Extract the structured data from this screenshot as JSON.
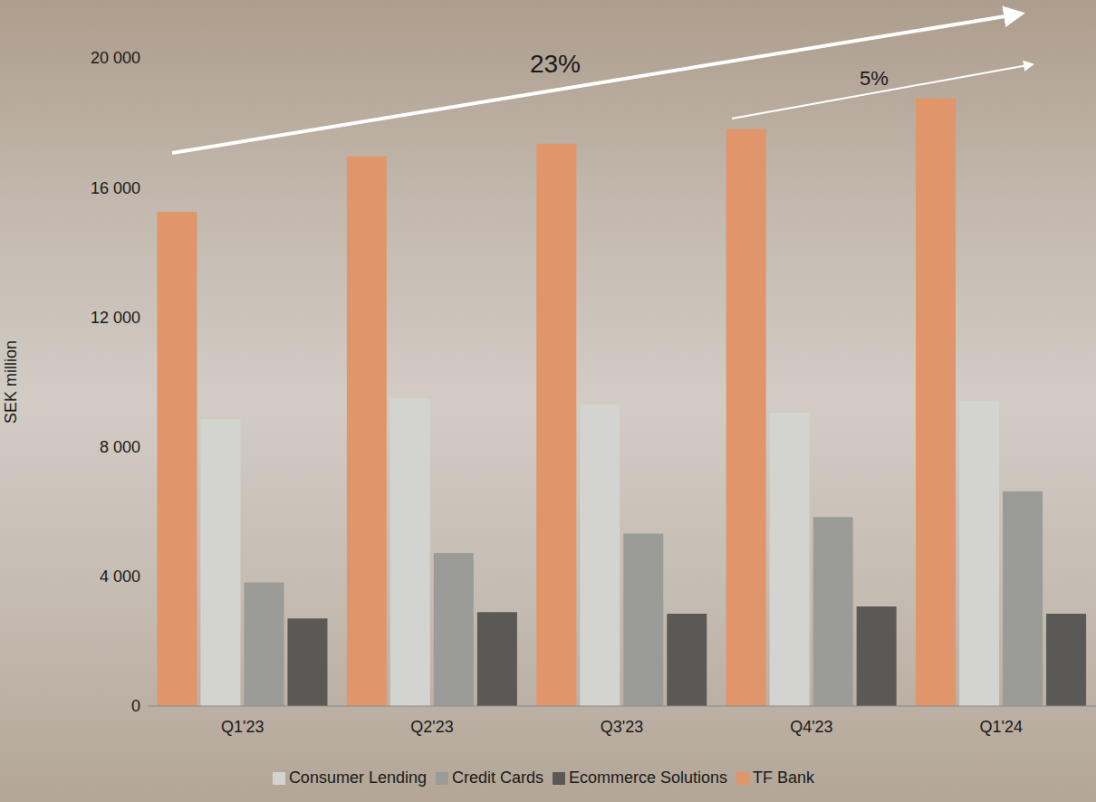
{
  "chart_data": {
    "type": "bar",
    "y_label": "SEK million",
    "categories": [
      "Q1'23",
      "Q2'23",
      "Q3'23",
      "Q4'23",
      "Q1'24"
    ],
    "series": [
      {
        "name": "TF Bank",
        "color": "#e0956a",
        "values": [
          15250,
          16960,
          17350,
          17810,
          18750
        ]
      },
      {
        "name": "Consumer Lending",
        "color": "#d3d3d0",
        "values": [
          8850,
          9500,
          9300,
          9050,
          9420
        ]
      },
      {
        "name": "Credit Cards",
        "color": "#9b9b98",
        "values": [
          3810,
          4720,
          5320,
          5830,
          6630
        ]
      },
      {
        "name": "Ecommerce Solutions",
        "color": "#5a5955",
        "values": [
          2700,
          2900,
          2850,
          3070,
          2850
        ]
      }
    ],
    "ylim": [
      0,
      20000
    ],
    "yticks": [
      0,
      {
        "value": 4000,
        "label": "4 000"
      },
      {
        "value": 8000,
        "label": "8 000"
      },
      {
        "value": 12000,
        "label": "12 000"
      },
      {
        "value": 16000,
        "label": "16 000"
      },
      {
        "value": 20000,
        "label": "20 000"
      }
    ],
    "annotations": [
      "23%",
      "5%"
    ],
    "grid": false,
    "legend": "bottom"
  }
}
